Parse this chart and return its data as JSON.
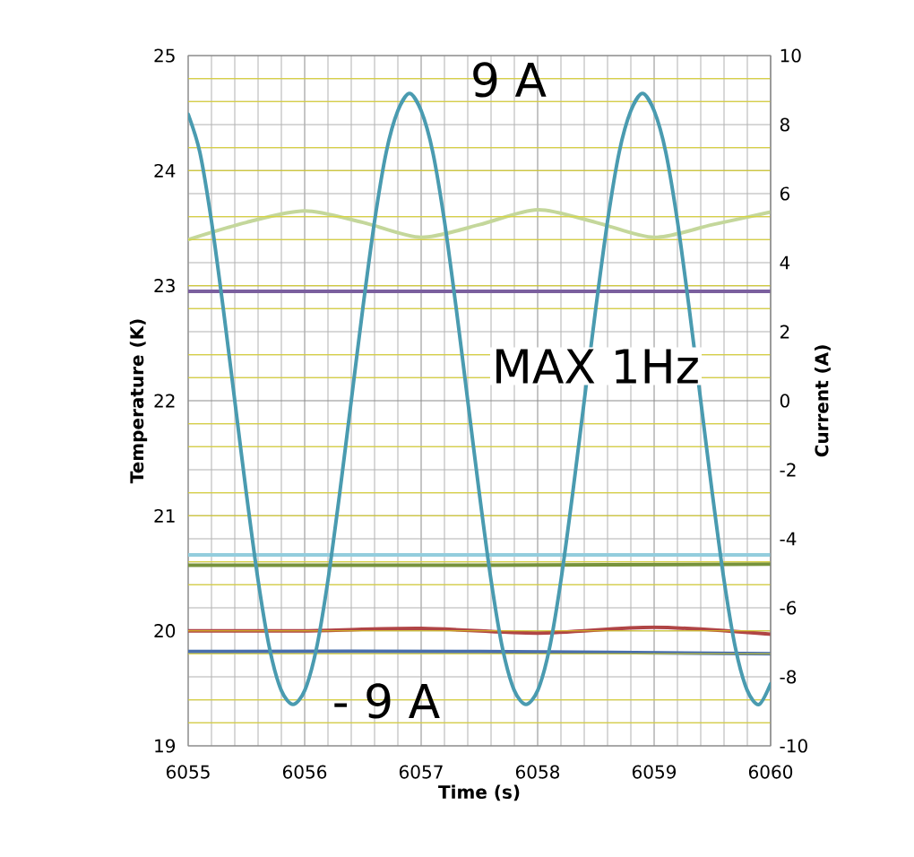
{
  "chart_data": {
    "type": "line",
    "xlabel": "Time (s)",
    "ylabel": "Temperature (K)",
    "y2label": "Current (A)",
    "xlim": [
      6055,
      6060
    ],
    "xticks": [
      6055,
      6056,
      6057,
      6058,
      6059,
      6060
    ],
    "ylim": [
      19,
      25
    ],
    "yticks": [
      19,
      20,
      21,
      22,
      23,
      24,
      25
    ],
    "y2lim": [
      -10,
      10
    ],
    "y2ticks": [
      -10,
      -8,
      -6,
      -4,
      -2,
      0,
      2,
      4,
      6,
      8,
      10
    ],
    "grid": true,
    "legend": false,
    "marker": "none",
    "line_style": "solid",
    "annotations": [
      "9 A",
      "MAX 1Hz",
      "- 9 A"
    ],
    "series": [
      {
        "color": "#c4d79b",
        "x": [
          6055,
          6055.5,
          6056,
          6056.5,
          6057,
          6057.5,
          6058,
          6058.5,
          6059,
          6059.5,
          6060
        ],
        "values": [
          23.4,
          23.55,
          23.65,
          23.55,
          23.42,
          23.53,
          23.66,
          23.55,
          23.42,
          23.53,
          23.64
        ]
      },
      {
        "color": "#7b5f9e",
        "x": [
          6055,
          6060
        ],
        "values": [
          22.95,
          22.95
        ]
      },
      {
        "color": "#93cddd",
        "x": [
          6055,
          6060
        ],
        "values": [
          20.66,
          20.66
        ]
      },
      {
        "color": "#77933c",
        "x": [
          6055,
          6057.5,
          6060
        ],
        "values": [
          20.57,
          20.57,
          20.58
        ]
      },
      {
        "color": "#b04545",
        "x": [
          6055,
          6056,
          6057,
          6058,
          6059,
          6060
        ],
        "values": [
          20.0,
          20.0,
          20.02,
          19.98,
          20.03,
          19.97
        ]
      },
      {
        "color": "#4a6fac",
        "x": [
          6055,
          6057.5,
          6060
        ],
        "values": [
          19.82,
          19.82,
          19.8
        ]
      },
      {
        "color": "#4a9bb0",
        "axis": "y2",
        "x": [
          6055,
          6055.1,
          6055.2,
          6055.3,
          6055.4,
          6055.5,
          6055.6,
          6055.7,
          6055.8,
          6055.9,
          6056,
          6056.1,
          6056.2,
          6056.3,
          6056.4,
          6056.5,
          6056.6,
          6056.7,
          6056.8,
          6056.9,
          6057,
          6057.1,
          6057.2,
          6057.3,
          6057.4,
          6057.5,
          6057.6,
          6057.7,
          6057.8,
          6057.9,
          6058,
          6058.1,
          6058.2,
          6058.3,
          6058.4,
          6058.5,
          6058.6,
          6058.7,
          6058.8,
          6058.9,
          6059,
          6059.1,
          6059.2,
          6059.3,
          6059.4,
          6059.5,
          6059.6,
          6059.7,
          6059.8,
          6059.9,
          6060
        ],
        "values": [
          8.3,
          7.2,
          5.2,
          2.7,
          0,
          -2.7,
          -5.2,
          -7.2,
          -8.4,
          -8.8,
          -8.4,
          -7.2,
          -5.2,
          -2.7,
          0,
          2.7,
          5.2,
          7.2,
          8.4,
          8.9,
          8.4,
          7.2,
          5.2,
          2.7,
          0,
          -2.7,
          -5.2,
          -7.2,
          -8.4,
          -8.8,
          -8.4,
          -7.2,
          -5.2,
          -2.7,
          0,
          2.7,
          5.2,
          7.2,
          8.4,
          8.9,
          8.4,
          7.2,
          5.2,
          2.7,
          0,
          -2.7,
          -5.2,
          -7.2,
          -8.4,
          -8.8,
          -8.2
        ]
      }
    ]
  }
}
